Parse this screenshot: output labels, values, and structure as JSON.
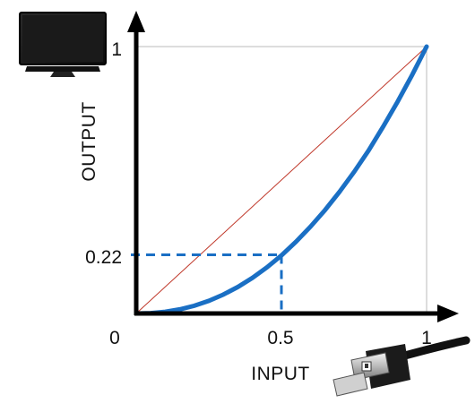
{
  "chart_data": {
    "type": "line",
    "title": "",
    "xlabel": "INPUT",
    "ylabel": "OUTPUT",
    "xlim": [
      0,
      1
    ],
    "ylim": [
      0,
      1
    ],
    "x_tick_labels": [
      "0",
      "0.5",
      "1"
    ],
    "y_tick_labels": [
      "0",
      "0.22",
      "1"
    ],
    "grid": false,
    "series": [
      {
        "role": "gamma curve",
        "style": "thick",
        "color": "#1a6fc4",
        "x": [
          0,
          0.05,
          0.1,
          0.15,
          0.2,
          0.25,
          0.3,
          0.35,
          0.4,
          0.45,
          0.5,
          0.55,
          0.6,
          0.65,
          0.7,
          0.75,
          0.8,
          0.85,
          0.9,
          0.95,
          1
        ],
        "y": [
          0,
          0.0014,
          0.0063,
          0.0153,
          0.029,
          0.0474,
          0.0707,
          0.0993,
          0.1332,
          0.1727,
          0.2176,
          0.2685,
          0.325,
          0.3873,
          0.4556,
          0.5298,
          0.6102,
          0.6992,
          0.7932,
          0.8932,
          1
        ]
      },
      {
        "role": "identity line",
        "style": "thin",
        "color": "#c0392b",
        "x": [
          0,
          1
        ],
        "y": [
          0,
          1
        ]
      }
    ],
    "annotations": [
      {
        "type": "dashed-guide",
        "x": 0.5,
        "y": 0.22,
        "color": "#1a6fc4"
      }
    ]
  },
  "icons": {
    "top_left": "monitor-icon",
    "bottom_right": "displayport-connector-icon"
  },
  "colors": {
    "axis": "#000000",
    "frame": "#bbbbbb"
  }
}
